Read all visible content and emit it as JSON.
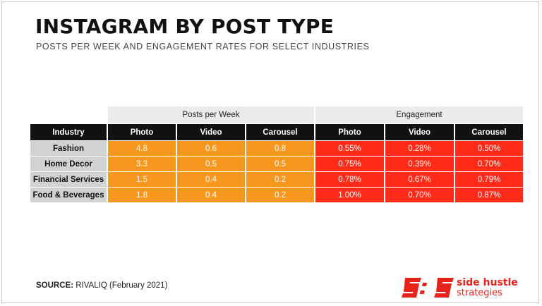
{
  "title": "INSTAGRAM BY POST TYPE",
  "subtitle": "POSTS PER WEEK AND ENGAGEMENT RATES FOR SELECT INDUSTRIES",
  "groups": [
    "Posts per Week",
    "Engagement"
  ],
  "columns": [
    "Industry",
    "Photo",
    "Video",
    "Carousel",
    "Photo",
    "Video",
    "Carousel"
  ],
  "rows": [
    {
      "industry": "Fashion",
      "posts": [
        "4.8",
        "0.6",
        "0.8"
      ],
      "engagement": [
        "0.55%",
        "0.28%",
        "0.50%"
      ]
    },
    {
      "industry": "Home Decor",
      "posts": [
        "3.3",
        "0.5",
        "0.5"
      ],
      "engagement": [
        "0.75%",
        "0.39%",
        "0.70%"
      ]
    },
    {
      "industry": "Financial Services",
      "posts": [
        "1.5",
        "0.4",
        "0.2"
      ],
      "engagement": [
        "0.78%",
        "0.67%",
        "0.79%"
      ]
    },
    {
      "industry": "Food & Beverages",
      "posts": [
        "1.8",
        "0.4",
        "0.2"
      ],
      "engagement": [
        "1.00%",
        "0.70%",
        "0.87%"
      ]
    }
  ],
  "source": {
    "label": "SOURCE:",
    "text": "RIVALIQ (February 2021)"
  },
  "logo": {
    "line1": "side hustle",
    "line2": "strategies"
  },
  "colors": {
    "posts": "#f7971e",
    "engagement": "#ff2a17",
    "header": "#111111",
    "industry": "#d2d2d2",
    "brand": "#e8231c"
  },
  "chart_data": {
    "type": "table",
    "title": "INSTAGRAM BY POST TYPE",
    "subtitle": "POSTS PER WEEK AND ENGAGEMENT RATES FOR SELECT INDUSTRIES",
    "groups": [
      "Posts per Week",
      "Engagement"
    ],
    "columns": [
      "Industry",
      "Photo",
      "Video",
      "Carousel",
      "Photo",
      "Video",
      "Carousel"
    ],
    "categories": [
      "Fashion",
      "Home Decor",
      "Financial Services",
      "Food & Beverages"
    ],
    "series": [
      {
        "name": "Posts per Week - Photo",
        "values": [
          4.8,
          3.3,
          1.5,
          1.8
        ]
      },
      {
        "name": "Posts per Week - Video",
        "values": [
          0.6,
          0.5,
          0.4,
          0.4
        ]
      },
      {
        "name": "Posts per Week - Carousel",
        "values": [
          0.8,
          0.5,
          0.2,
          0.2
        ]
      },
      {
        "name": "Engagement - Photo",
        "values": [
          0.55,
          0.75,
          0.78,
          1.0
        ]
      },
      {
        "name": "Engagement - Video",
        "values": [
          0.28,
          0.39,
          0.67,
          0.7
        ]
      },
      {
        "name": "Engagement - Carousel",
        "values": [
          0.5,
          0.7,
          0.79,
          0.87
        ]
      }
    ]
  }
}
